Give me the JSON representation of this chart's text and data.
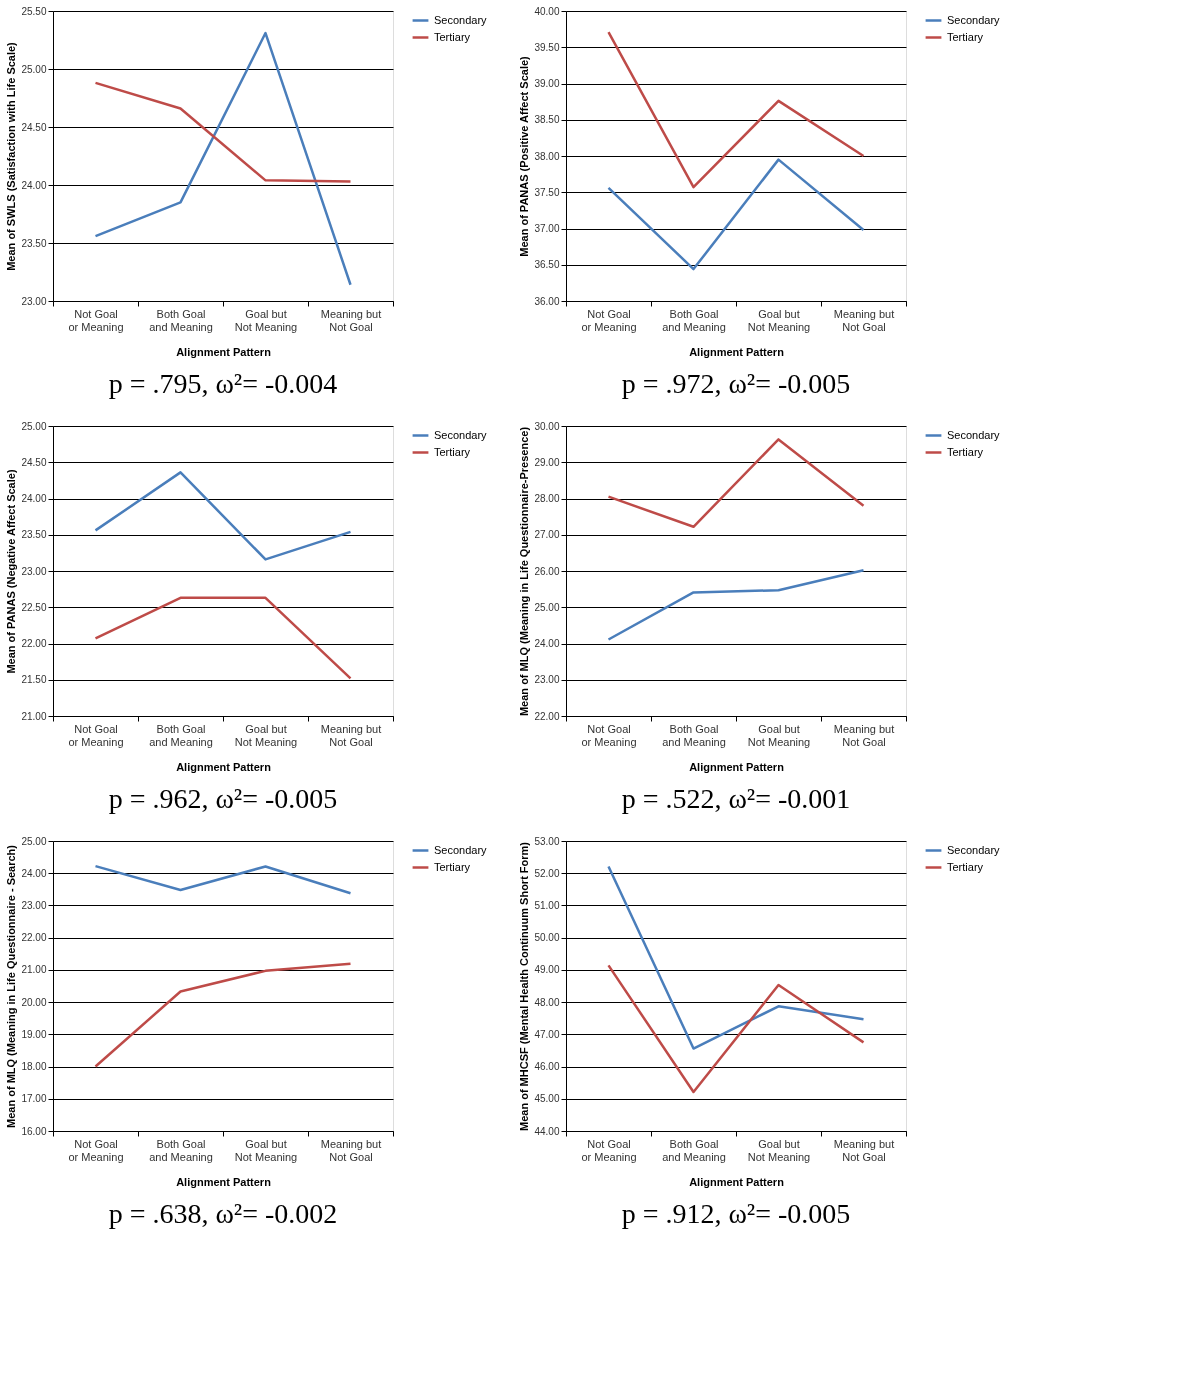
{
  "chart_data": [
    {
      "type": "line",
      "categories": [
        "Not Goal\nor Meaning",
        "Both Goal\nand Meaning",
        "Goal but\nNot Meaning",
        "Meaning but\nNot Goal"
      ],
      "xlabel": "Alignment Pattern",
      "ylabel": "Mean of SWLS (Satisfaction with Life Scale)",
      "ylim": [
        23,
        25.5
      ],
      "yticks": [
        {
          "value": 23,
          "label": "23.00"
        },
        {
          "value": 23.5,
          "label": "23.50"
        },
        {
          "value": 24,
          "label": "24.00"
        },
        {
          "value": 24.5,
          "label": "24.50"
        },
        {
          "value": 25,
          "label": "25.00"
        },
        {
          "value": 25.5,
          "label": "25.50"
        }
      ],
      "grid": "y",
      "legend": "right",
      "series": [
        {
          "name": "Secondary",
          "color": "#4a7ebb",
          "values": [
            23.56,
            23.85,
            25.31,
            23.14
          ]
        },
        {
          "name": "Tertiary",
          "color": "#be4b48",
          "values": [
            24.88,
            24.66,
            24.04,
            24.03
          ]
        }
      ],
      "annotations": [
        "p = .795, ω²= -0.004"
      ]
    },
    {
      "type": "line",
      "categories": [
        "Not Goal\nor Meaning",
        "Both Goal\nand Meaning",
        "Goal but\nNot Meaning",
        "Meaning but\nNot Goal"
      ],
      "xlabel": "Alignment Pattern",
      "ylabel": "Mean of PANAS (Positive Affect  Scale)",
      "ylim": [
        36,
        40
      ],
      "yticks": [
        {
          "value": 36,
          "label": "36.00"
        },
        {
          "value": 36.5,
          "label": "36.50"
        },
        {
          "value": 37,
          "label": "37.00"
        },
        {
          "value": 37.5,
          "label": "37.50"
        },
        {
          "value": 38,
          "label": "38.00"
        },
        {
          "value": 38.5,
          "label": "38.50"
        },
        {
          "value": 39,
          "label": "39.00"
        },
        {
          "value": 39.5,
          "label": "39.50"
        },
        {
          "value": 40,
          "label": "40.00"
        }
      ],
      "grid": "y",
      "legend": "right",
      "series": [
        {
          "name": "Secondary",
          "color": "#4a7ebb",
          "values": [
            37.56,
            36.44,
            37.95,
            36.98
          ]
        },
        {
          "name": "Tertiary",
          "color": "#be4b48",
          "values": [
            39.71,
            37.57,
            38.76,
            38.0
          ]
        }
      ],
      "annotations": [
        "p = .972, ω²= -0.005"
      ]
    },
    {
      "type": "line",
      "categories": [
        "Not Goal\nor Meaning",
        "Both Goal\nand Meaning",
        "Goal but\nNot Meaning",
        "Meaning but\nNot Goal"
      ],
      "xlabel": "Alignment Pattern",
      "ylabel": "Mean of PANAS (Negative Affect Scale)",
      "ylim": [
        21,
        25
      ],
      "yticks": [
        {
          "value": 21,
          "label": "21.00"
        },
        {
          "value": 21.5,
          "label": "21.50"
        },
        {
          "value": 22,
          "label": "22.00"
        },
        {
          "value": 22.5,
          "label": "22.50"
        },
        {
          "value": 23,
          "label": "23.00"
        },
        {
          "value": 23.5,
          "label": "23.50"
        },
        {
          "value": 24,
          "label": "24.00"
        },
        {
          "value": 24.5,
          "label": "24.50"
        },
        {
          "value": 25,
          "label": "25.00"
        }
      ],
      "grid": "y",
      "legend": "right",
      "series": [
        {
          "name": "Secondary",
          "color": "#4a7ebb",
          "values": [
            23.56,
            24.36,
            23.16,
            23.54
          ]
        },
        {
          "name": "Tertiary",
          "color": "#be4b48",
          "values": [
            22.07,
            22.63,
            22.63,
            21.52
          ]
        }
      ],
      "annotations": [
        "p = .962, ω²= -0.005"
      ]
    },
    {
      "type": "line",
      "categories": [
        "Not Goal\nor Meaning",
        "Both Goal\nand Meaning",
        "Goal but\nNot Meaning",
        "Meaning but\nNot Goal"
      ],
      "xlabel": "Alignment Pattern",
      "ylabel": "Mean of MLQ (Meaning in Life Questionnaire-Presence)",
      "ylim": [
        22,
        30
      ],
      "yticks": [
        {
          "value": 22,
          "label": "22.00"
        },
        {
          "value": 23,
          "label": "23.00"
        },
        {
          "value": 24,
          "label": "24.00"
        },
        {
          "value": 25,
          "label": "25.00"
        },
        {
          "value": 26,
          "label": "26.00"
        },
        {
          "value": 27,
          "label": "27.00"
        },
        {
          "value": 28,
          "label": "28.00"
        },
        {
          "value": 29,
          "label": "29.00"
        },
        {
          "value": 30,
          "label": "30.00"
        }
      ],
      "grid": "y",
      "legend": "right",
      "series": [
        {
          "name": "Secondary",
          "color": "#4a7ebb",
          "values": [
            24.11,
            25.41,
            25.47,
            26.02
          ]
        },
        {
          "name": "Tertiary",
          "color": "#be4b48",
          "values": [
            28.05,
            27.22,
            29.63,
            27.8
          ]
        }
      ],
      "annotations": [
        "p = .522, ω²= -0.001"
      ]
    },
    {
      "type": "line",
      "categories": [
        "Not Goal\nor Meaning",
        "Both Goal\nand Meaning",
        "Goal but\nNot Meaning",
        "Meaning but\nNot Goal"
      ],
      "xlabel": "Alignment Pattern",
      "ylabel": "Mean of MLQ (Meaning in Life Questionnaire - Search)",
      "ylim": [
        16,
        25
      ],
      "yticks": [
        {
          "value": 16,
          "label": "16.00"
        },
        {
          "value": 17,
          "label": "17.00"
        },
        {
          "value": 18,
          "label": "18.00"
        },
        {
          "value": 19,
          "label": "19.00"
        },
        {
          "value": 20,
          "label": "20.00"
        },
        {
          "value": 21,
          "label": "21.00"
        },
        {
          "value": 22,
          "label": "22.00"
        },
        {
          "value": 23,
          "label": "23.00"
        },
        {
          "value": 24,
          "label": "24.00"
        },
        {
          "value": 25,
          "label": "25.00"
        }
      ],
      "grid": "y",
      "legend": "right",
      "series": [
        {
          "name": "Secondary",
          "color": "#4a7ebb",
          "values": [
            24.22,
            23.48,
            24.21,
            23.38
          ]
        },
        {
          "name": "Tertiary",
          "color": "#be4b48",
          "values": [
            18.0,
            20.33,
            20.97,
            21.19
          ]
        }
      ],
      "annotations": [
        "p = .638, ω²= -0.002"
      ]
    },
    {
      "type": "line",
      "categories": [
        "Not Goal\nor Meaning",
        "Both Goal\nand Meaning",
        "Goal but\nNot Meaning",
        "Meaning but\nNot Goal"
      ],
      "xlabel": "Alignment Pattern",
      "ylabel": "Mean of MHCSF (Mental Health Continuum Short Form)",
      "ylim": [
        44,
        53
      ],
      "yticks": [
        {
          "value": 44,
          "label": "44.00"
        },
        {
          "value": 45,
          "label": "45.00"
        },
        {
          "value": 46,
          "label": "46.00"
        },
        {
          "value": 47,
          "label": "47.00"
        },
        {
          "value": 48,
          "label": "48.00"
        },
        {
          "value": 49,
          "label": "49.00"
        },
        {
          "value": 50,
          "label": "50.00"
        },
        {
          "value": 51,
          "label": "51.00"
        },
        {
          "value": 52,
          "label": "52.00"
        },
        {
          "value": 53,
          "label": "53.00"
        }
      ],
      "grid": "y",
      "legend": "right",
      "series": [
        {
          "name": "Secondary",
          "color": "#4a7ebb",
          "values": [
            52.21,
            46.56,
            47.87,
            47.47
          ]
        },
        {
          "name": "Tertiary",
          "color": "#be4b48",
          "values": [
            49.14,
            45.21,
            48.53,
            46.75
          ]
        }
      ],
      "annotations": [
        "p = .912, ω²= -0.005"
      ]
    }
  ]
}
